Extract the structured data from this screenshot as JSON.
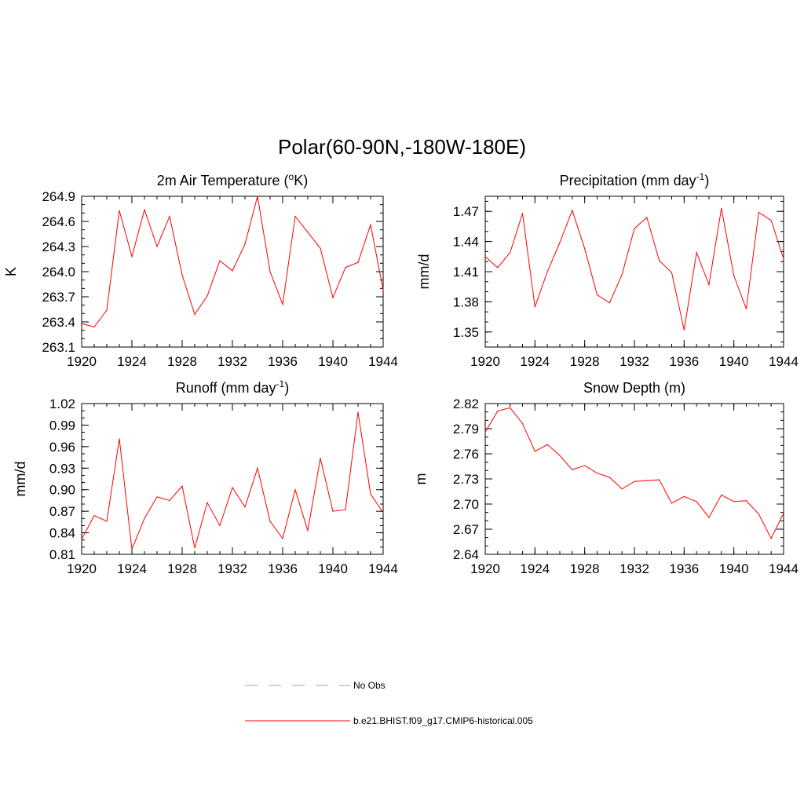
{
  "figure": {
    "title": "Polar(60-90N,-180W-180E)"
  },
  "colors": {
    "series": "#ff0000",
    "obs": "#9999ff",
    "axis": "#000000"
  },
  "legend": {
    "entries": [
      {
        "label": "No Obs",
        "style": "dashed",
        "color": "#9999ff"
      },
      {
        "label": "b.e21.BHIST.f09_g17.CMIP6-historical.005",
        "style": "solid",
        "color": "#ff0000"
      }
    ]
  },
  "chart_data": [
    {
      "type": "line",
      "id": "t2m",
      "title": "2m Air Temperature (",
      "title_sup": "o",
      "title_after": "K)",
      "xlabel": "",
      "ylabel": "K",
      "xlim": [
        1920,
        1944
      ],
      "ylim": [
        263.1,
        264.9
      ],
      "xticks": [
        1920,
        1924,
        1928,
        1932,
        1936,
        1940,
        1944
      ],
      "xtick_labels": [
        "1920",
        "1924",
        "1928",
        "1932",
        "1936",
        "1940",
        "1944"
      ],
      "yticks": [
        263.1,
        263.4,
        263.7,
        264.0,
        264.3,
        264.6,
        264.9
      ],
      "ytick_labels": [
        "263.1",
        "263.4",
        "263.7",
        "264.0",
        "264.3",
        "264.6",
        "264.9"
      ],
      "yminor_step": 0.1,
      "series": [
        {
          "name": "b.e21.BHIST.f09_g17.CMIP6-historical.005",
          "x": [
            1920,
            1921,
            1922,
            1923,
            1924,
            1925,
            1926,
            1927,
            1928,
            1929,
            1930,
            1931,
            1932,
            1933,
            1934,
            1935,
            1936,
            1937,
            1938,
            1939,
            1940,
            1941,
            1942,
            1943,
            1944
          ],
          "y": [
            263.38,
            263.34,
            263.54,
            264.73,
            264.18,
            264.74,
            264.3,
            264.66,
            263.96,
            263.49,
            263.71,
            264.13,
            264.01,
            264.33,
            264.9,
            264.0,
            263.61,
            264.66,
            264.47,
            264.28,
            263.69,
            264.05,
            264.11,
            264.56,
            263.78
          ]
        }
      ]
    },
    {
      "type": "line",
      "id": "precip",
      "title": "Precipitation (mm day",
      "title_sup": "-1",
      "title_after": ")",
      "xlabel": "",
      "ylabel": "mm/d",
      "xlim": [
        1920,
        1944
      ],
      "ylim": [
        1.335,
        1.485
      ],
      "xticks": [
        1920,
        1924,
        1928,
        1932,
        1936,
        1940,
        1944
      ],
      "xtick_labels": [
        "1920",
        "1924",
        "1928",
        "1932",
        "1936",
        "1940",
        "1944"
      ],
      "yticks": [
        1.35,
        1.38,
        1.41,
        1.44,
        1.47
      ],
      "ytick_labels": [
        "1.35",
        "1.38",
        "1.41",
        "1.44",
        "1.47"
      ],
      "yminor_step": 0.01,
      "series": [
        {
          "name": "b.e21.BHIST.f09_g17.CMIP6-historical.005",
          "x": [
            1920,
            1921,
            1922,
            1923,
            1924,
            1925,
            1926,
            1927,
            1928,
            1929,
            1930,
            1931,
            1932,
            1933,
            1934,
            1935,
            1936,
            1937,
            1938,
            1939,
            1940,
            1941,
            1942,
            1943,
            1944
          ],
          "y": [
            1.425,
            1.414,
            1.429,
            1.468,
            1.375,
            1.41,
            1.439,
            1.471,
            1.433,
            1.387,
            1.379,
            1.407,
            1.453,
            1.464,
            1.421,
            1.409,
            1.352,
            1.429,
            1.397,
            1.473,
            1.406,
            1.373,
            1.469,
            1.461,
            1.423
          ]
        }
      ]
    },
    {
      "type": "line",
      "id": "runoff",
      "title": "Runoff (mm day",
      "title_sup": "-1",
      "title_after": ")",
      "xlabel": "",
      "ylabel": "mm/d",
      "xlim": [
        1920,
        1944
      ],
      "ylim": [
        0.81,
        1.02
      ],
      "xticks": [
        1920,
        1924,
        1928,
        1932,
        1936,
        1940,
        1944
      ],
      "xtick_labels": [
        "1920",
        "1924",
        "1928",
        "1932",
        "1936",
        "1940",
        "1944"
      ],
      "yticks": [
        0.81,
        0.84,
        0.87,
        0.9,
        0.93,
        0.96,
        0.99,
        1.02
      ],
      "ytick_labels": [
        "0.81",
        "0.84",
        "0.87",
        "0.90",
        "0.93",
        "0.96",
        "0.99",
        "1.02"
      ],
      "yminor_step": 0.01,
      "series": [
        {
          "name": "b.e21.BHIST.f09_g17.CMIP6-historical.005",
          "x": [
            1920,
            1921,
            1922,
            1923,
            1924,
            1925,
            1926,
            1927,
            1928,
            1929,
            1930,
            1931,
            1932,
            1933,
            1934,
            1935,
            1936,
            1937,
            1938,
            1939,
            1940,
            1941,
            1942,
            1943,
            1944
          ],
          "y": [
            0.831,
            0.864,
            0.856,
            0.971,
            0.817,
            0.86,
            0.89,
            0.885,
            0.905,
            0.819,
            0.882,
            0.85,
            0.903,
            0.876,
            0.93,
            0.856,
            0.832,
            0.9,
            0.843,
            0.944,
            0.87,
            0.872,
            1.008,
            0.894,
            0.868
          ]
        }
      ]
    },
    {
      "type": "line",
      "id": "snow",
      "title": "Snow Depth (m)",
      "title_sup": "",
      "title_after": "",
      "xlabel": "",
      "ylabel": "m",
      "xlim": [
        1920,
        1944
      ],
      "ylim": [
        2.64,
        2.82
      ],
      "xticks": [
        1920,
        1924,
        1928,
        1932,
        1936,
        1940,
        1944
      ],
      "xtick_labels": [
        "1920",
        "1924",
        "1928",
        "1932",
        "1936",
        "1940",
        "1944"
      ],
      "yticks": [
        2.64,
        2.67,
        2.7,
        2.73,
        2.76,
        2.79,
        2.82
      ],
      "ytick_labels": [
        "2.64",
        "2.67",
        "2.70",
        "2.73",
        "2.76",
        "2.79",
        "2.82"
      ],
      "yminor_step": 0.01,
      "series": [
        {
          "name": "b.e21.BHIST.f09_g17.CMIP6-historical.005",
          "x": [
            1920,
            1921,
            1922,
            1923,
            1924,
            1925,
            1926,
            1927,
            1928,
            1929,
            1930,
            1931,
            1932,
            1933,
            1934,
            1935,
            1936,
            1937,
            1938,
            1939,
            1940,
            1941,
            1942,
            1943,
            1944
          ],
          "y": [
            2.786,
            2.811,
            2.815,
            2.796,
            2.763,
            2.771,
            2.758,
            2.741,
            2.746,
            2.737,
            2.732,
            2.718,
            2.727,
            2.728,
            2.729,
            2.701,
            2.709,
            2.703,
            2.684,
            2.711,
            2.703,
            2.704,
            2.688,
            2.659,
            2.689
          ]
        }
      ]
    }
  ]
}
